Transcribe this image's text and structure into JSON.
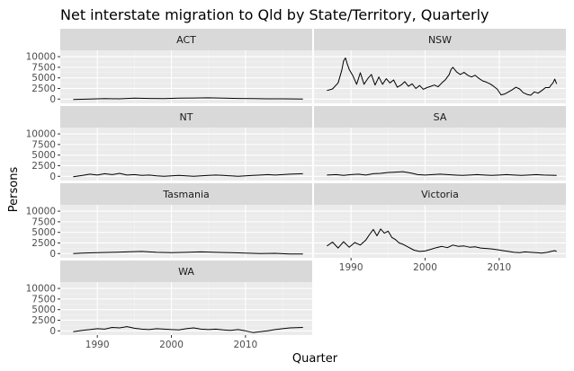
{
  "chart_data": {
    "type": "line",
    "title": "Net interstate migration to Qld by State/Territory, Quarterly",
    "xlabel": "Quarter",
    "ylabel": "Persons",
    "xlim": [
      1985,
      2019
    ],
    "ylim": [
      -1000,
      11500
    ],
    "x_ticks": [
      1990,
      2000,
      2010
    ],
    "y_ticks": [
      0,
      2500,
      5000,
      7500,
      10000
    ],
    "y_tick_labels": [
      "0",
      "2500",
      "5000",
      "7500",
      "10000"
    ],
    "panels": [
      {
        "name": "ACT",
        "x": [
          1986.75,
          1989,
          1991,
          1993,
          1995,
          1997,
          1999,
          2001,
          2003,
          2005,
          2007,
          2009,
          2011,
          2013,
          2015,
          2017.75
        ],
        "y": [
          -100,
          0,
          100,
          50,
          200,
          150,
          100,
          200,
          250,
          300,
          200,
          150,
          100,
          50,
          50,
          0
        ]
      },
      {
        "name": "NSW",
        "x": [
          1986.75,
          1987.5,
          1988.25,
          1988.75,
          1989.0,
          1989.25,
          1989.5,
          1989.75,
          1990.25,
          1990.75,
          1991.25,
          1991.75,
          1992.25,
          1992.75,
          1993.25,
          1993.75,
          1994.25,
          1994.75,
          1995.25,
          1995.75,
          1996.25,
          1996.75,
          1997.25,
          1997.75,
          1998.25,
          1998.75,
          1999.25,
          1999.75,
          2000.25,
          2000.75,
          2001.25,
          2001.75,
          2002.25,
          2002.75,
          2003.25,
          2003.5,
          2003.75,
          2004.25,
          2004.75,
          2005.25,
          2005.75,
          2006.25,
          2006.75,
          2007.25,
          2007.75,
          2008.25,
          2008.75,
          2009.25,
          2009.75,
          2010.25,
          2010.75,
          2011.25,
          2011.75,
          2012.25,
          2012.75,
          2013.25,
          2013.75,
          2014.25,
          2014.75,
          2015.25,
          2015.75,
          2016.25,
          2016.75,
          2017.0,
          2017.25,
          2017.5,
          2017.75
        ],
        "y": [
          2000,
          2400,
          3800,
          6800,
          9000,
          9700,
          8200,
          7000,
          5500,
          3500,
          6200,
          3500,
          4800,
          5800,
          3300,
          5200,
          3500,
          4800,
          3800,
          4500,
          2800,
          3300,
          4100,
          3000,
          3600,
          2500,
          3200,
          2300,
          2700,
          3000,
          3300,
          2900,
          3800,
          4600,
          5800,
          7000,
          7500,
          6400,
          5800,
          6300,
          5600,
          5200,
          5600,
          4900,
          4300,
          4000,
          3600,
          3000,
          2300,
          1000,
          1200,
          1700,
          2200,
          2800,
          2400,
          1500,
          1100,
          900,
          1700,
          1400,
          2000,
          2700,
          2700,
          3300,
          3800,
          4700,
          3600
        ]
      },
      {
        "name": "NT",
        "x": [
          1986.75,
          1988,
          1989,
          1990,
          1991,
          1992,
          1993,
          1994,
          1995,
          1996,
          1997,
          1998,
          1999,
          2000,
          2001,
          2002,
          2003,
          2004,
          2005,
          2006,
          2007,
          2008,
          2009,
          2010,
          2011,
          2012,
          2013,
          2014,
          2015,
          2016,
          2017.75
        ],
        "y": [
          -100,
          200,
          500,
          300,
          600,
          400,
          700,
          300,
          400,
          200,
          300,
          100,
          0,
          100,
          200,
          100,
          0,
          100,
          200,
          300,
          200,
          100,
          0,
          100,
          200,
          300,
          400,
          300,
          400,
          500,
          600
        ]
      },
      {
        "name": "SA",
        "x": [
          1986.75,
          1988,
          1989,
          1990,
          1991,
          1992,
          1993,
          1994,
          1995,
          1996,
          1997,
          1998,
          1999,
          2000,
          2001,
          2002,
          2003,
          2004,
          2005,
          2006,
          2007,
          2008,
          2009,
          2010,
          2011,
          2012,
          2013,
          2014,
          2015,
          2016,
          2017.75
        ],
        "y": [
          300,
          400,
          200,
          400,
          500,
          300,
          600,
          700,
          900,
          1000,
          1100,
          800,
          400,
          300,
          400,
          500,
          400,
          300,
          200,
          300,
          400,
          300,
          200,
          300,
          400,
          300,
          200,
          300,
          400,
          300,
          200
        ]
      },
      {
        "name": "Tasmania",
        "x": [
          1986.75,
          1988,
          1990,
          1992,
          1994,
          1996,
          1998,
          2000,
          2002,
          2004,
          2006,
          2008,
          2010,
          2012,
          2014,
          2016,
          2017.75
        ],
        "y": [
          0,
          100,
          200,
          300,
          400,
          500,
          300,
          200,
          300,
          400,
          300,
          200,
          100,
          0,
          50,
          -100,
          -100
        ]
      },
      {
        "name": "Victoria",
        "x": [
          1986.75,
          1987.5,
          1988.25,
          1989.0,
          1989.75,
          1990.5,
          1991.25,
          1992.0,
          1992.5,
          1993.0,
          1993.5,
          1994.0,
          1994.5,
          1995.0,
          1995.5,
          1996.0,
          1996.5,
          1997.0,
          1997.75,
          1998.5,
          1999.25,
          2000.0,
          2000.75,
          2001.5,
          2002.25,
          2003.0,
          2003.75,
          2004.5,
          2005.25,
          2006.0,
          2006.75,
          2007.5,
          2008.25,
          2009.0,
          2009.75,
          2010.5,
          2011.25,
          2012.0,
          2012.75,
          2013.5,
          2014.25,
          2015.0,
          2015.75,
          2016.5,
          2017.0,
          2017.5,
          2017.75
        ],
        "y": [
          1800,
          2700,
          1300,
          2800,
          1500,
          2600,
          2000,
          3200,
          4500,
          5700,
          4200,
          5800,
          4800,
          5300,
          3800,
          3300,
          2500,
          2200,
          1500,
          800,
          500,
          600,
          1000,
          1400,
          1700,
          1400,
          2000,
          1700,
          1800,
          1500,
          1600,
          1300,
          1200,
          1100,
          900,
          700,
          500,
          300,
          200,
          400,
          300,
          200,
          100,
          300,
          500,
          700,
          500
        ]
      },
      {
        "name": "WA",
        "x": [
          1986.75,
          1988,
          1989,
          1990,
          1991,
          1992,
          1993,
          1994,
          1995,
          1996,
          1997,
          1998,
          1999,
          2000,
          2001,
          2002,
          2003,
          2004,
          2005,
          2006,
          2007,
          2008,
          2009,
          2010,
          2011,
          2012,
          2013,
          2014,
          2015,
          2016,
          2017.75
        ],
        "y": [
          -200,
          100,
          300,
          500,
          400,
          800,
          700,
          1000,
          600,
          400,
          300,
          500,
          400,
          300,
          200,
          500,
          700,
          400,
          300,
          400,
          200,
          100,
          300,
          0,
          -400,
          -200,
          0,
          300,
          500,
          700,
          800
        ]
      }
    ]
  }
}
